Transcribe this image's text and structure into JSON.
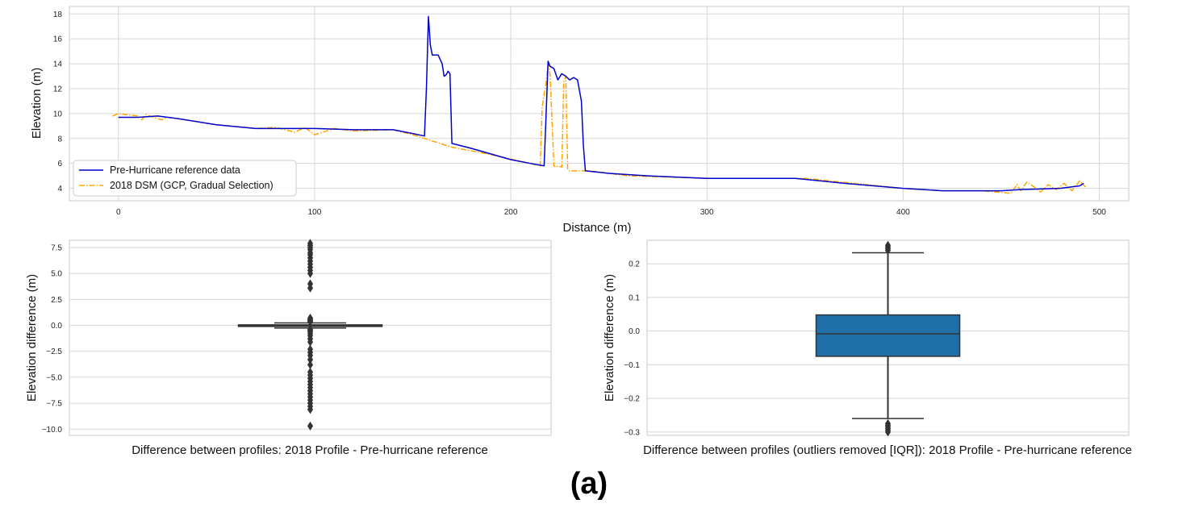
{
  "panel_label": "(a)",
  "chart_data": [
    {
      "type": "line",
      "xlabel": "Distance (m)",
      "ylabel": "Elevation (m)",
      "xlim": [
        -25,
        515
      ],
      "ylim": [
        3,
        18.6
      ],
      "xticks": [
        0,
        100,
        200,
        300,
        400,
        500
      ],
      "yticks": [
        4,
        6,
        8,
        10,
        12,
        14,
        16,
        18
      ],
      "grid": true,
      "legend_position": "lower-left",
      "series": [
        {
          "name": "Pre-Hurricane reference data",
          "color": "#0000cc",
          "style": "solid",
          "x": [
            0,
            10,
            20,
            30,
            50,
            70,
            100,
            120,
            140,
            150,
            156,
            157,
            158,
            159,
            160,
            163,
            165,
            166,
            167,
            168,
            169,
            170,
            180,
            200,
            210,
            217,
            218,
            219,
            220,
            222,
            224,
            226,
            228,
            230,
            232,
            234,
            236,
            237,
            238,
            250,
            270,
            300,
            345,
            370,
            400,
            420,
            450,
            460,
            480,
            490,
            492
          ],
          "y": [
            9.7,
            9.7,
            9.8,
            9.6,
            9.1,
            8.8,
            8.8,
            8.7,
            8.7,
            8.4,
            8.2,
            12.0,
            17.8,
            15.5,
            14.7,
            14.7,
            14.0,
            13.0,
            13.1,
            13.4,
            13.2,
            7.6,
            7.2,
            6.3,
            6.0,
            5.8,
            10.0,
            14.2,
            13.8,
            13.6,
            12.7,
            13.2,
            13.0,
            12.7,
            12.9,
            12.7,
            11.0,
            7.5,
            5.4,
            5.2,
            5.0,
            4.8,
            4.8,
            4.4,
            4.0,
            3.8,
            3.8,
            3.9,
            4.0,
            4.2,
            4.4
          ]
        },
        {
          "name": "2018 DSM (GCP, Gradual Selection)",
          "color": "#ffa500",
          "style": "dashdot",
          "x": [
            -3,
            0,
            5,
            10,
            12,
            14,
            18,
            22,
            25,
            30,
            50,
            70,
            80,
            90,
            95,
            100,
            110,
            120,
            140,
            150,
            160,
            170,
            190,
            210,
            215,
            216,
            217,
            218,
            219,
            220,
            222,
            223,
            224,
            226,
            227,
            228,
            229,
            230,
            240,
            260,
            300,
            350,
            400,
            420,
            440,
            455,
            458,
            460,
            463,
            466,
            470,
            474,
            478,
            482,
            486,
            490,
            493
          ],
          "y": [
            9.8,
            10.0,
            9.9,
            9.8,
            9.5,
            9.9,
            9.7,
            9.5,
            9.7,
            9.6,
            9.1,
            8.8,
            8.9,
            8.5,
            8.9,
            8.3,
            8.8,
            8.6,
            8.7,
            8.3,
            7.8,
            7.3,
            6.7,
            6.0,
            5.8,
            10.5,
            11.5,
            12.5,
            14.0,
            13.2,
            5.8,
            5.7,
            5.8,
            5.7,
            12.5,
            13.0,
            5.5,
            5.4,
            5.4,
            5.0,
            4.8,
            4.8,
            4.0,
            3.8,
            3.8,
            3.6,
            4.3,
            3.8,
            4.5,
            4.2,
            3.7,
            4.3,
            3.9,
            4.4,
            3.8,
            4.6,
            4.1
          ]
        }
      ]
    },
    {
      "type": "box",
      "xlabel": "Difference between profiles: 2018 Profile - Pre-hurricane reference",
      "ylabel": "Elevation difference (m)",
      "ylim": [
        -10.6,
        8.2
      ],
      "yticks": [
        7.5,
        5.0,
        2.5,
        0.0,
        -2.5,
        -5.0,
        -7.5,
        -10.0
      ],
      "ytick_labels": [
        "7.5",
        "5.0",
        "2.5",
        "0.0",
        "−2.5",
        "−5.0",
        "−7.5",
        "−10.0"
      ],
      "grid": true,
      "box_color": "#1f77b4",
      "q1": -0.08,
      "median": -0.01,
      "q3": 0.05,
      "whisker_low": -0.26,
      "whisker_high": 0.24,
      "outliers": [
        7.9,
        7.7,
        7.5,
        7.3,
        7.0,
        6.8,
        6.5,
        6.2,
        5.9,
        5.6,
        5.3,
        5.0,
        4.0,
        3.6,
        0.7,
        0.6,
        0.5,
        0.4,
        0.35,
        -0.4,
        -0.5,
        -0.6,
        -0.8,
        -1.0,
        -1.3,
        -1.6,
        -2.3,
        -2.6,
        -2.9,
        -3.3,
        -3.8,
        -4.5,
        -4.8,
        -5.1,
        -5.4,
        -5.7,
        -6.0,
        -6.3,
        -6.6,
        -6.9,
        -7.2,
        -7.5,
        -7.8,
        -8.1,
        -9.7
      ]
    },
    {
      "type": "box",
      "xlabel": "Difference between profiles (outliers removed [IQR]): 2018 Profile - Pre-hurricane reference",
      "ylabel": "Elevation difference (m)",
      "ylim": [
        -0.31,
        0.27
      ],
      "yticks": [
        0.2,
        0.1,
        0.0,
        -0.1,
        -0.2,
        -0.3
      ],
      "ytick_labels": [
        "0.2",
        "0.1",
        "0.0",
        "−0.1",
        "−0.2",
        "−0.3"
      ],
      "grid": true,
      "box_color": "#1f6fa8",
      "q1": -0.075,
      "median": -0.008,
      "q3": 0.048,
      "whisker_low": -0.26,
      "whisker_high": 0.233,
      "outliers": [
        0.255,
        0.25,
        0.245,
        0.24,
        -0.275,
        -0.28,
        -0.285,
        -0.29,
        -0.295,
        -0.3
      ]
    }
  ]
}
